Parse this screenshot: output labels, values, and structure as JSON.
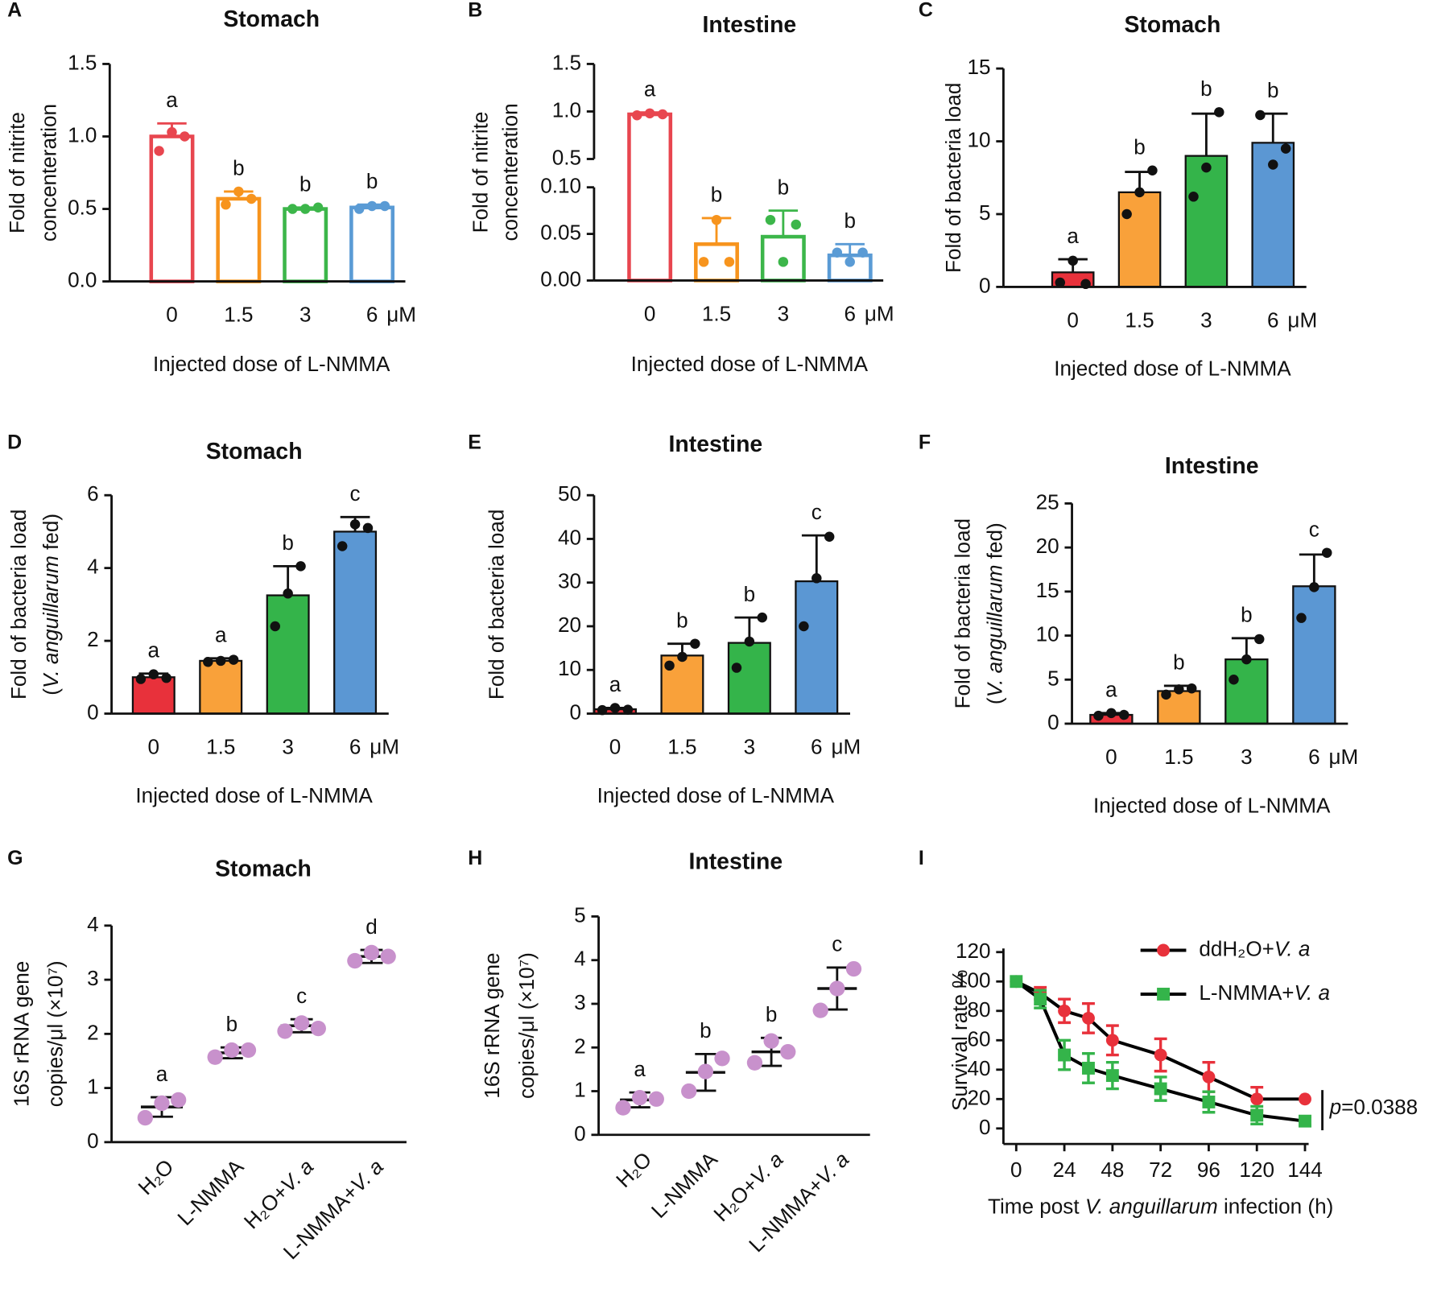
{
  "chart_data": [
    {
      "type": "bar",
      "panel": "A",
      "title": "Stomach",
      "bar_style": "outline",
      "categories": [
        "0",
        "1.5",
        "3",
        "6"
      ],
      "x_unit": "μM",
      "xlabel": "Injected dose of L-NMMA",
      "ylabel": [
        "Fold of nitrite",
        "concenteration"
      ],
      "colors": [
        "#e8464f",
        "#f7941d",
        "#3cb64a",
        "#5a9bd5"
      ],
      "values": [
        1.0,
        0.57,
        0.5,
        0.51
      ],
      "errors": [
        0.09,
        0.05,
        0.01,
        0.02
      ],
      "points": [
        [
          0.9,
          1.03,
          1.0
        ],
        [
          0.53,
          0.62,
          0.57
        ],
        [
          0.5,
          0.5,
          0.51
        ],
        [
          0.5,
          0.52,
          0.52
        ]
      ],
      "annotations": [
        "a",
        "b",
        "b",
        "b"
      ],
      "ylim": [
        0,
        1.5
      ],
      "yticks": [
        {
          "value": 0,
          "label": "0.0"
        },
        {
          "value": 0.5,
          "label": "0.5"
        },
        {
          "value": 1.0,
          "label": "1.0"
        },
        {
          "value": 1.5,
          "label": "1.5"
        }
      ]
    },
    {
      "type": "bar",
      "panel": "B",
      "title": "Intestine",
      "bar_style": "outline",
      "categories": [
        "0",
        "1.5",
        "3",
        "6"
      ],
      "x_unit": "μM",
      "xlabel": "Injected dose of L-NMMA",
      "ylabel": [
        "Fold of nitrite",
        "concenteration"
      ],
      "colors": [
        "#e8464f",
        "#f7941d",
        "#3cb64a",
        "#5a9bd5"
      ],
      "values": [
        0.97,
        0.039,
        0.047,
        0.027
      ],
      "errors": [
        0.02,
        0.028,
        0.028,
        0.012
      ],
      "points": [
        [
          0.96,
          0.98,
          0.97
        ],
        [
          0.02,
          0.065,
          0.02
        ],
        [
          0.065,
          0.02,
          0.06
        ],
        [
          0.03,
          0.02,
          0.03
        ]
      ],
      "annotations": [
        "a",
        "b",
        "b",
        "b"
      ],
      "ylim": [
        0,
        1.5
      ],
      "ybreak": [
        0.1,
        0.5
      ],
      "yticks": [
        {
          "value": 0,
          "label": "0.00"
        },
        {
          "value": 0.05,
          "label": "0.05"
        },
        {
          "value": 0.1,
          "label": "0.10"
        },
        {
          "value": 0.5,
          "label": "0.5"
        },
        {
          "value": 1.0,
          "label": "1.0"
        },
        {
          "value": 1.5,
          "label": "1.5"
        }
      ]
    },
    {
      "type": "bar",
      "panel": "C",
      "title": "Stomach",
      "bar_style": "filled",
      "categories": [
        "0",
        "1.5",
        "3",
        "6"
      ],
      "x_unit": "μM",
      "xlabel": "Injected dose of L-NMMA",
      "ylabel": [
        "Fold of bacteria load"
      ],
      "colors": [
        "#e8313b",
        "#f9a13a",
        "#34b44a",
        "#5b97d3"
      ],
      "values": [
        1.0,
        6.5,
        9.0,
        9.9
      ],
      "errors": [
        0.9,
        1.4,
        2.9,
        2.0
      ],
      "points": [
        [
          0.3,
          1.8,
          0.2
        ],
        [
          5.0,
          6.5,
          8.0
        ],
        [
          6.2,
          8.2,
          12.0
        ],
        [
          11.8,
          8.4,
          9.5
        ]
      ],
      "annotations": [
        "a",
        "b",
        "b",
        "b"
      ],
      "ylim": [
        0,
        15
      ],
      "yticks": [
        0,
        5,
        10,
        15
      ]
    },
    {
      "type": "bar",
      "panel": "D",
      "title": "Stomach",
      "bar_style": "filled",
      "categories": [
        "0",
        "1.5",
        "3",
        "6"
      ],
      "x_unit": "μM",
      "xlabel": "Injected dose of L-NMMA",
      "ylabel": [
        "Fold of bacteria load",
        "(V. anguillarum fed)"
      ],
      "colors": [
        "#e8313b",
        "#f9a13a",
        "#34b44a",
        "#5b97d3"
      ],
      "values": [
        1.0,
        1.45,
        3.25,
        5.0
      ],
      "errors": [
        0.1,
        0.07,
        0.8,
        0.4
      ],
      "points": [
        [
          0.95,
          1.08,
          0.98
        ],
        [
          1.42,
          1.45,
          1.48
        ],
        [
          2.4,
          3.3,
          4.05
        ],
        [
          4.6,
          5.2,
          5.1
        ]
      ],
      "annotations": [
        "a",
        "a",
        "b",
        "c"
      ],
      "ylim": [
        0,
        6
      ],
      "yticks": [
        0,
        2,
        4,
        6
      ]
    },
    {
      "type": "bar",
      "panel": "E",
      "title": "Intestine",
      "bar_style": "filled",
      "categories": [
        "0",
        "1.5",
        "3",
        "6"
      ],
      "x_unit": "μM",
      "xlabel": "Injected dose of L-NMMA",
      "ylabel": [
        "Fold of bacteria load"
      ],
      "colors": [
        "#e8313b",
        "#f9a13a",
        "#34b44a",
        "#5b97d3"
      ],
      "values": [
        1.0,
        13.3,
        16.2,
        30.3
      ],
      "errors": [
        0.3,
        2.7,
        5.8,
        10.5
      ],
      "points": [
        [
          0.8,
          1.3,
          0.9
        ],
        [
          11.0,
          13.0,
          16.0
        ],
        [
          10.5,
          16.5,
          22.0
        ],
        [
          20.0,
          31.0,
          40.5
        ]
      ],
      "annotations": [
        "a",
        "b",
        "b",
        "c"
      ],
      "ylim": [
        0,
        50
      ],
      "yticks": [
        0,
        10,
        20,
        30,
        40,
        50
      ]
    },
    {
      "type": "bar",
      "panel": "F",
      "title": "Intestine",
      "bar_style": "filled",
      "categories": [
        "0",
        "1.5",
        "3",
        "6"
      ],
      "x_unit": "μM",
      "xlabel": "Injected dose of L-NMMA",
      "ylabel": [
        "Fold of bacteria load",
        "(V. anguillarum fed)"
      ],
      "colors": [
        "#e8313b",
        "#f9a13a",
        "#34b44a",
        "#5b97d3"
      ],
      "values": [
        1.0,
        3.7,
        7.3,
        15.6
      ],
      "errors": [
        0.2,
        0.6,
        2.4,
        3.6
      ],
      "points": [
        [
          0.9,
          1.2,
          1.0
        ],
        [
          3.3,
          3.9,
          4.0
        ],
        [
          5.0,
          7.3,
          9.6
        ],
        [
          12.0,
          15.5,
          19.4
        ]
      ],
      "annotations": [
        "a",
        "b",
        "b",
        "c"
      ],
      "ylim": [
        0,
        25
      ],
      "yticks": [
        0,
        5,
        10,
        15,
        20,
        25
      ]
    },
    {
      "type": "scatter",
      "panel": "G",
      "title": "Stomach",
      "color": "#c891cc",
      "categories": [
        "H₂O",
        "L-NMMA",
        "H₂O+V. a",
        "L-NMMA+V. a"
      ],
      "ylabel": [
        "16S rRNA gene",
        "copies/μl (×10⁷)"
      ],
      "values": [
        0.65,
        1.65,
        2.15,
        3.43
      ],
      "errors": [
        0.18,
        0.1,
        0.12,
        0.12
      ],
      "points": [
        [
          0.45,
          0.72,
          0.78
        ],
        [
          1.57,
          1.7,
          1.7
        ],
        [
          2.05,
          2.2,
          2.1
        ],
        [
          3.35,
          3.5,
          3.43
        ]
      ],
      "annotations": [
        "a",
        "b",
        "c",
        "d"
      ],
      "ylim": [
        0,
        4
      ],
      "yticks": [
        0,
        1,
        2,
        3,
        4
      ]
    },
    {
      "type": "scatter",
      "panel": "H",
      "title": "Intestine",
      "color": "#c891cc",
      "categories": [
        "H₂O",
        "L-NMMA",
        "H₂O+V. a",
        "L-NMMA+V. a"
      ],
      "ylabel": [
        "16S rRNA gene",
        "copies/μl (×10⁷)"
      ],
      "values": [
        0.8,
        1.43,
        1.9,
        3.35
      ],
      "errors": [
        0.17,
        0.42,
        0.32,
        0.48
      ],
      "points": [
        [
          0.62,
          0.85,
          0.82
        ],
        [
          1.0,
          1.45,
          1.75
        ],
        [
          1.65,
          2.15,
          1.9
        ],
        [
          2.85,
          3.35,
          3.8
        ]
      ],
      "annotations": [
        "a",
        "b",
        "b",
        "c"
      ],
      "ylim": [
        0,
        5
      ],
      "yticks": [
        0,
        1,
        2,
        3,
        4,
        5
      ]
    },
    {
      "type": "line",
      "panel": "I",
      "line_color": "#000000",
      "xlabel": "Time post V. anguillarum infection (h)",
      "ylabel": [
        "Survival rate %"
      ],
      "x": [
        0,
        12,
        24,
        36,
        48,
        72,
        96,
        120,
        144
      ],
      "series": [
        {
          "name": "ddH₂O+V. a",
          "color": "#e8313b",
          "marker": "circle",
          "values": [
            100,
            92,
            80,
            75,
            60,
            50,
            35,
            20,
            20
          ],
          "errors": [
            0,
            4,
            8,
            10,
            10,
            11,
            10,
            8,
            0
          ]
        },
        {
          "name": "L-NMMA+V. a",
          "color": "#34b44a",
          "marker": "square",
          "values": [
            100,
            88,
            50,
            41,
            36,
            27,
            18,
            9,
            5
          ],
          "errors": [
            0,
            6,
            10,
            10,
            9,
            8,
            7,
            6,
            3
          ]
        }
      ],
      "annotation": "p=0.0388",
      "xlim": [
        0,
        144
      ],
      "xticks": [
        0,
        24,
        48,
        72,
        96,
        120,
        144
      ],
      "ylim": [
        0,
        120
      ],
      "yticks": [
        0,
        20,
        40,
        60,
        80,
        100,
        120
      ]
    }
  ]
}
